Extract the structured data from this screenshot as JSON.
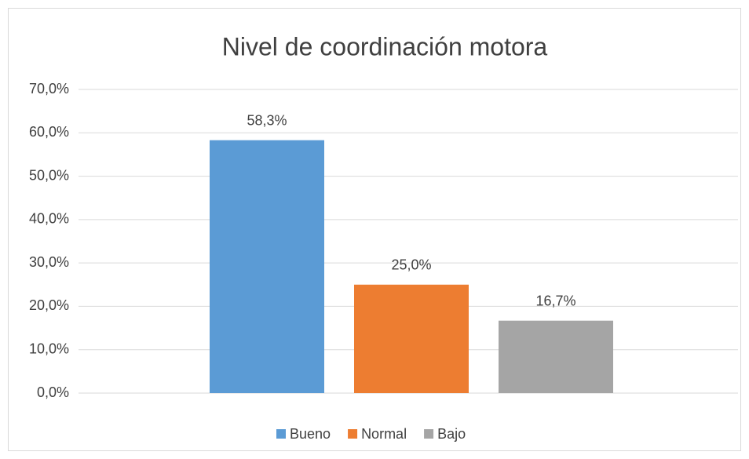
{
  "chart_data": {
    "type": "bar",
    "title": "Nivel de coordinación motora",
    "categories": [
      null
    ],
    "series": [
      {
        "name": "Bueno",
        "color": "#5b9bd5",
        "values": [
          58.3
        ],
        "value_labels": [
          "58,3%"
        ]
      },
      {
        "name": "Normal",
        "color": "#ed7d31",
        "values": [
          25.0
        ],
        "value_labels": [
          "25,0%"
        ]
      },
      {
        "name": "Bajo",
        "color": "#a5a5a5",
        "values": [
          16.7
        ],
        "value_labels": [
          "16,7%"
        ]
      }
    ],
    "ylim": [
      0,
      70
    ],
    "yticks": [
      {
        "value": 0,
        "label": "0,0%"
      },
      {
        "value": 10,
        "label": "10,0%"
      },
      {
        "value": 20,
        "label": "20,0%"
      },
      {
        "value": 30,
        "label": "30,0%"
      },
      {
        "value": 40,
        "label": "40,0%"
      },
      {
        "value": 50,
        "label": "50,0%"
      },
      {
        "value": 60,
        "label": "60,0%"
      },
      {
        "value": 70,
        "label": "70,0%"
      }
    ],
    "grid": true,
    "legend": "bottom"
  }
}
